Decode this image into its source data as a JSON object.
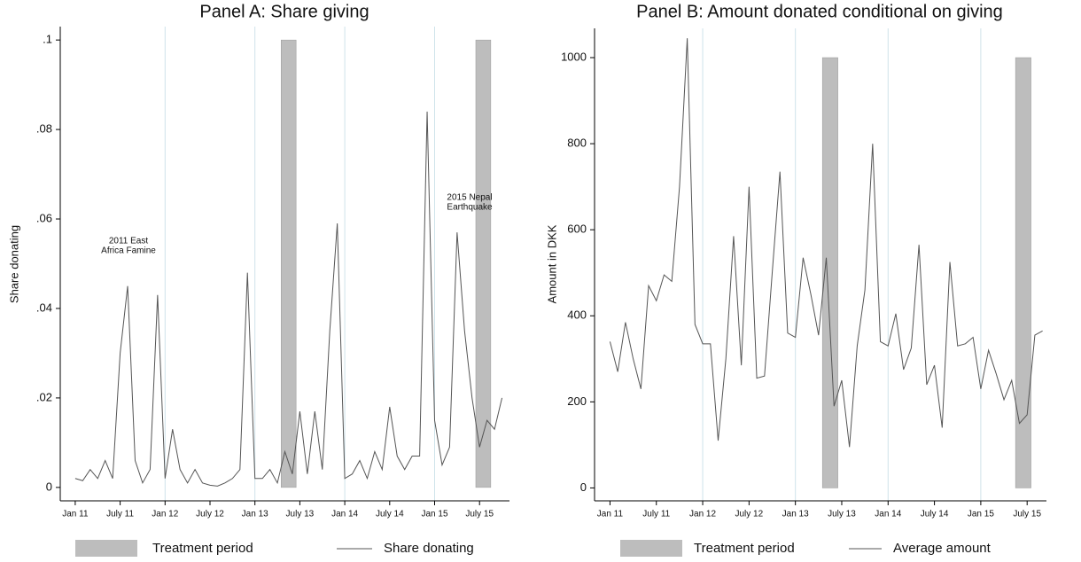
{
  "chart_data": [
    {
      "type": "line",
      "title": "Panel A: Share giving",
      "y_label": "Share donating",
      "x": [
        0,
        1,
        2,
        3,
        4,
        5,
        6,
        7,
        8,
        9,
        10,
        11,
        12,
        13,
        14,
        15,
        16,
        17,
        18,
        19,
        20,
        21,
        22,
        23,
        24,
        25,
        26,
        27,
        28,
        29,
        30,
        31,
        32,
        33,
        34,
        35,
        36,
        37,
        38,
        39,
        40,
        41,
        42,
        43,
        44,
        45,
        46,
        47,
        48,
        49,
        50,
        51,
        52,
        53,
        54,
        55,
        56,
        57
      ],
      "series": [
        {
          "name": "Share donating",
          "color": "#555555",
          "values": [
            0.002,
            0.0015,
            0.004,
            0.002,
            0.006,
            0.002,
            0.03,
            0.045,
            0.006,
            0.001,
            0.004,
            0.043,
            0.002,
            0.013,
            0.004,
            0.001,
            0.004,
            0.001,
            0.0005,
            0.0003,
            0.001,
            0.002,
            0.004,
            0.048,
            0.002,
            0.002,
            0.004,
            0.001,
            0.008,
            0.003,
            0.017,
            0.003,
            0.017,
            0.004,
            0.035,
            0.059,
            0.002,
            0.003,
            0.006,
            0.002,
            0.008,
            0.004,
            0.018,
            0.007,
            0.004,
            0.007,
            0.007,
            0.084,
            0.015,
            0.005,
            0.009,
            0.057,
            0.035,
            0.02,
            0.009,
            0.015,
            0.013,
            0.02
          ]
        }
      ],
      "treatment": {
        "name": "Treatment period",
        "color": "#bdbdbd",
        "spans": [
          [
            27.5,
            29.5
          ],
          [
            53.5,
            55.5
          ]
        ],
        "height": 0.1
      },
      "annotations": [
        [
          "2011 East",
          "Africa Famine"
        ],
        [
          "2015 Nepal",
          "Earthquake"
        ]
      ],
      "xlim": [
        -2,
        58
      ],
      "xticks": [
        {
          "value": 0,
          "label": "Jan 11"
        },
        {
          "value": 6,
          "label": "July 11"
        },
        {
          "value": 12,
          "label": "Jan 12"
        },
        {
          "value": 18,
          "label": "July 12"
        },
        {
          "value": 24,
          "label": "Jan 13"
        },
        {
          "value": 30,
          "label": "July 13"
        },
        {
          "value": 36,
          "label": "Jan 14"
        },
        {
          "value": 42,
          "label": "July 14"
        },
        {
          "value": 48,
          "label": "Jan 15"
        },
        {
          "value": 54,
          "label": "July 15"
        }
      ],
      "xgrid": [
        12,
        24,
        36,
        48
      ],
      "grid_color": "#cfe3ea",
      "ylim": [
        -0.003,
        0.103
      ],
      "yticks": [
        0,
        {
          "value": 0.02,
          "label": ".02"
        },
        {
          "value": 0.04,
          "label": ".04"
        },
        {
          "value": 0.06,
          "label": ".06"
        },
        {
          "value": 0.08,
          "label": ".08"
        },
        {
          "value": 0.1,
          "label": ".1"
        }
      ]
    },
    {
      "type": "line",
      "title": "Panel B: Amount donated conditional on giving",
      "y_label": "Amount in DKK",
      "x": [
        0,
        1,
        2,
        3,
        4,
        5,
        6,
        7,
        8,
        9,
        10,
        11,
        12,
        13,
        14,
        15,
        16,
        17,
        18,
        19,
        20,
        21,
        22,
        23,
        24,
        25,
        26,
        27,
        28,
        29,
        30,
        31,
        32,
        33,
        34,
        35,
        36,
        37,
        38,
        39,
        40,
        41,
        42,
        43,
        44,
        45,
        46,
        47,
        48,
        49,
        50,
        51,
        52,
        53,
        54,
        55,
        56
      ],
      "series": [
        {
          "name": "Average amount",
          "color": "#555555",
          "values": [
            340,
            270,
            385,
            300,
            230,
            470,
            435,
            495,
            480,
            700,
            1045,
            380,
            335,
            335,
            110,
            300,
            585,
            285,
            700,
            255,
            260,
            500,
            735,
            360,
            350,
            535,
            450,
            355,
            535,
            190,
            250,
            95,
            330,
            460,
            800,
            340,
            330,
            405,
            275,
            325,
            565,
            240,
            285,
            140,
            525,
            330,
            335,
            350,
            230,
            320,
            265,
            205,
            250,
            150,
            170,
            355,
            365
          ]
        }
      ],
      "treatment": {
        "name": "Treatment period",
        "color": "#bdbdbd",
        "spans": [
          [
            27.5,
            29.5
          ],
          [
            52.5,
            54.5
          ]
        ],
        "height": 1000
      },
      "xlim": [
        -2,
        56.5
      ],
      "xticks": [
        {
          "value": 0,
          "label": "Jan 11"
        },
        {
          "value": 6,
          "label": "July 11"
        },
        {
          "value": 12,
          "label": "Jan 12"
        },
        {
          "value": 18,
          "label": "July 12"
        },
        {
          "value": 24,
          "label": "Jan 13"
        },
        {
          "value": 30,
          "label": "July 13"
        },
        {
          "value": 36,
          "label": "Jan 14"
        },
        {
          "value": 42,
          "label": "July 14"
        },
        {
          "value": 48,
          "label": "Jan 15"
        },
        {
          "value": 54,
          "label": "July 15"
        }
      ],
      "xgrid": [
        12,
        24,
        36,
        48
      ],
      "grid_color": "#cfe3ea",
      "ylim": [
        -30,
        1068
      ],
      "yticks": [
        0,
        200,
        400,
        600,
        800,
        1000
      ]
    }
  ]
}
